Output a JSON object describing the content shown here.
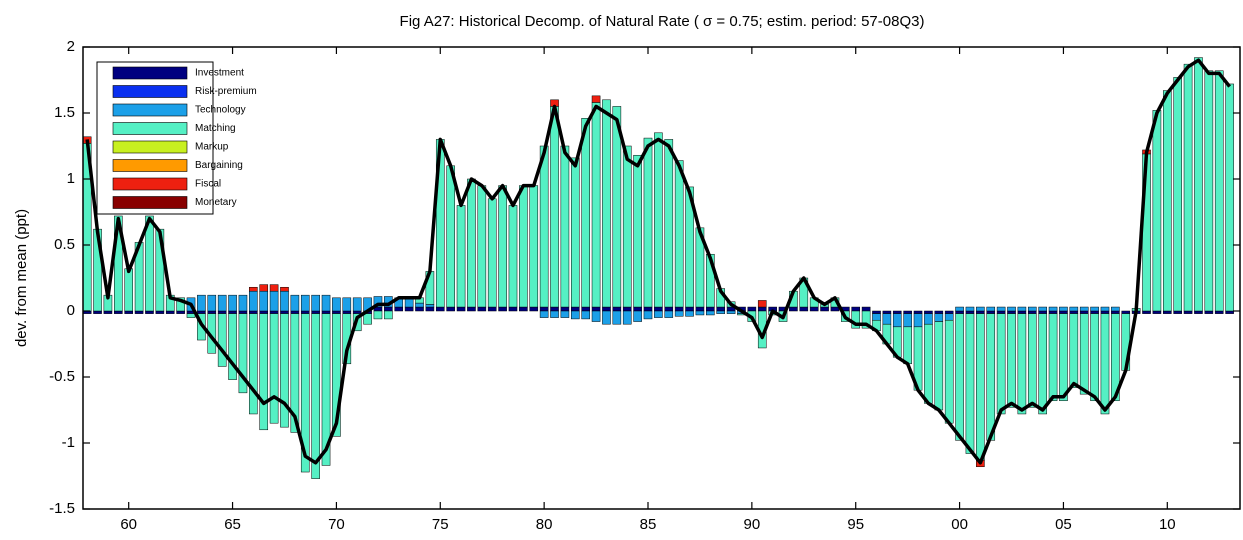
{
  "chart_data": {
    "type": "stacked_bar_line",
    "title": "Fig A27: Historical Decomp. of Natural Rate  (    σ =  0.75; estim. period: 57-08Q3)",
    "ylabel": "dev. from mean (ppt)",
    "x": [
      1958,
      1958.5,
      1959,
      1959.5,
      1960,
      1960.5,
      1961,
      1961.5,
      1962,
      1962.5,
      1963,
      1963.5,
      1964,
      1964.5,
      1965,
      1965.5,
      1966,
      1966.5,
      1967,
      1967.5,
      1968,
      1968.5,
      1969,
      1969.5,
      1970,
      1970.5,
      1971,
      1971.5,
      1972,
      1972.5,
      1973,
      1973.5,
      1974,
      1974.5,
      1975,
      1975.5,
      1976,
      1976.5,
      1977,
      1977.5,
      1978,
      1978.5,
      1979,
      1979.5,
      1980,
      1980.5,
      1981,
      1981.5,
      1982,
      1982.5,
      1983,
      1983.5,
      1984,
      1984.5,
      1985,
      1985.5,
      1986,
      1986.5,
      1987,
      1987.5,
      1988,
      1988.5,
      1989,
      1989.5,
      1990,
      1990.5,
      1991,
      1991.5,
      1992,
      1992.5,
      1993,
      1993.5,
      1994,
      1994.5,
      1995,
      1995.5,
      1996,
      1996.5,
      1997,
      1997.5,
      1998,
      1998.5,
      1999,
      1999.5,
      2000,
      2000.5,
      2001,
      2001.5,
      2002,
      2002.5,
      2003,
      2003.5,
      2004,
      2004.5,
      2005,
      2005.5,
      2006,
      2006.5,
      2007,
      2007.5,
      2008,
      2008.5,
      2009,
      2009.5,
      2010,
      2010.5,
      2011,
      2011.5,
      2012,
      2012.5,
      2013
    ],
    "series": [
      {
        "name": "Investment",
        "color": "#000080",
        "values": [
          -0.02,
          -0.02,
          -0.02,
          -0.02,
          -0.02,
          -0.02,
          -0.02,
          -0.02,
          -0.02,
          -0.02,
          -0.02,
          -0.02,
          -0.02,
          -0.02,
          -0.02,
          -0.02,
          -0.02,
          -0.02,
          -0.02,
          -0.02,
          -0.02,
          -0.02,
          -0.02,
          -0.02,
          -0.02,
          -0.02,
          -0.02,
          -0.02,
          0.03,
          0.03,
          0.03,
          0.03,
          0.03,
          0.03,
          0.03,
          0.03,
          0.03,
          0.03,
          0.03,
          0.03,
          0.03,
          0.03,
          0.03,
          0.03,
          0.03,
          0.03,
          0.03,
          0.03,
          0.03,
          0.03,
          0.03,
          0.03,
          0.03,
          0.03,
          0.03,
          0.03,
          0.03,
          0.03,
          0.03,
          0.03,
          0.03,
          0.03,
          0.03,
          0.03,
          0.03,
          0.03,
          0.03,
          0.03,
          0.03,
          0.03,
          0.03,
          0.03,
          0.03,
          0.03,
          0.03,
          0.03,
          -0.02,
          -0.02,
          -0.02,
          -0.02,
          -0.02,
          -0.02,
          -0.02,
          -0.02,
          -0.02,
          -0.02,
          -0.02,
          -0.02,
          -0.02,
          -0.02,
          -0.02,
          -0.02,
          -0.02,
          -0.02,
          -0.02,
          -0.02,
          -0.02,
          -0.02,
          -0.02,
          -0.02,
          -0.02,
          -0.02,
          -0.02,
          -0.02,
          -0.02,
          -0.02,
          -0.02,
          -0.02,
          -0.02,
          -0.02,
          -0.02
        ]
      },
      {
        "name": "Risk-premium",
        "color": "#0a30f0",
        "values": [
          0,
          0,
          0,
          0,
          0,
          0,
          0,
          0,
          0,
          0,
          0,
          0,
          0,
          0,
          0,
          0,
          0,
          0,
          0,
          0,
          0,
          0,
          0,
          0,
          0,
          0,
          0,
          0,
          0,
          0,
          0,
          0,
          0,
          0,
          0,
          0,
          0,
          0,
          0,
          0,
          0,
          0,
          0,
          0,
          0,
          0,
          0,
          0,
          0,
          0,
          0,
          0,
          0,
          0,
          0,
          0,
          0,
          0,
          0,
          0,
          0,
          0,
          0,
          0,
          0,
          0,
          0,
          0,
          0,
          0,
          0,
          0,
          0,
          0,
          0,
          0,
          0,
          0,
          0,
          0,
          0,
          0,
          0,
          0,
          0,
          0,
          0,
          0,
          0,
          0,
          0,
          0,
          0,
          0,
          0,
          0,
          0,
          0,
          0,
          0,
          0,
          0,
          0,
          0,
          0,
          0,
          0,
          0,
          0,
          0,
          0
        ]
      },
      {
        "name": "Technology",
        "color": "#1ca0e8",
        "values": [
          0,
          0,
          0,
          0,
          0,
          0,
          0,
          0,
          0,
          0,
          0.1,
          0.12,
          0.12,
          0.12,
          0.12,
          0.12,
          0.15,
          0.15,
          0.15,
          0.15,
          0.12,
          0.12,
          0.12,
          0.12,
          0.1,
          0.1,
          0.1,
          0.1,
          0.08,
          0.08,
          0.06,
          0.06,
          0.03,
          0.02,
          0,
          0,
          0,
          0,
          0,
          0,
          0,
          0,
          0,
          0,
          -0.05,
          -0.05,
          -0.05,
          -0.06,
          -0.06,
          -0.08,
          -0.1,
          -0.1,
          -0.1,
          -0.08,
          -0.06,
          -0.05,
          -0.05,
          -0.04,
          -0.04,
          -0.03,
          -0.03,
          -0.02,
          -0.02,
          -0.02,
          0,
          0,
          0,
          0,
          0,
          0,
          0,
          0,
          0,
          0,
          0,
          0,
          -0.05,
          -0.08,
          -0.1,
          -0.1,
          -0.1,
          -0.08,
          -0.06,
          -0.05,
          0.03,
          0.03,
          0.03,
          0.03,
          0.03,
          0.03,
          0.03,
          0.03,
          0.03,
          0.03,
          0.03,
          0.03,
          0.03,
          0.03,
          0.03,
          0.03,
          0,
          0,
          0,
          0,
          0,
          0,
          0,
          0,
          0,
          0,
          0
        ]
      },
      {
        "name": "Matching",
        "color": "#55f0c4",
        "values": [
          1.27,
          0.62,
          0.12,
          0.72,
          0.32,
          0.52,
          0.72,
          0.62,
          0.12,
          0.1,
          -0.03,
          -0.2,
          -0.3,
          -0.4,
          -0.5,
          -0.6,
          -0.76,
          -0.88,
          -0.83,
          -0.86,
          -0.9,
          -1.2,
          -1.25,
          -1.15,
          -0.93,
          -0.38,
          -0.13,
          -0.08,
          -0.06,
          -0.06,
          0.01,
          0.01,
          0.04,
          0.25,
          1.27,
          1.07,
          0.77,
          0.97,
          0.92,
          0.82,
          0.92,
          0.77,
          0.92,
          0.92,
          1.22,
          1.52,
          1.22,
          1.13,
          1.43,
          1.55,
          1.57,
          1.52,
          1.22,
          1.15,
          1.28,
          1.32,
          1.27,
          1.11,
          0.91,
          0.6,
          0.4,
          0.14,
          0.04,
          -0.01,
          -0.08,
          -0.28,
          -0.03,
          -0.08,
          0.12,
          0.22,
          0.07,
          0.02,
          0.07,
          -0.08,
          -0.13,
          -0.13,
          -0.08,
          -0.15,
          -0.23,
          -0.28,
          -0.48,
          -0.6,
          -0.67,
          -0.78,
          -0.96,
          -1.06,
          -1.11,
          -0.96,
          -0.76,
          -0.71,
          -0.76,
          -0.71,
          -0.76,
          -0.66,
          -0.66,
          -0.56,
          -0.61,
          -0.66,
          -0.76,
          -0.66,
          -0.43,
          0.02,
          1.19,
          1.52,
          1.67,
          1.77,
          1.87,
          1.92,
          1.82,
          1.82,
          1.72
        ]
      },
      {
        "name": "Markup",
        "color": "#c8f020",
        "values": [
          0,
          0,
          0,
          0,
          0,
          0,
          0,
          0,
          0,
          0,
          0,
          0,
          0,
          0,
          0,
          0,
          0,
          0,
          0,
          0,
          0,
          0,
          0,
          0,
          0,
          0,
          0,
          0,
          0,
          0,
          0,
          0,
          0,
          0,
          0,
          0,
          0,
          0,
          0,
          0,
          0,
          0,
          0,
          0,
          0,
          0,
          0,
          0,
          0,
          0,
          0,
          0,
          0,
          0,
          0,
          0,
          0,
          0,
          0,
          0,
          0,
          0,
          0,
          0,
          0,
          0,
          0,
          0,
          0,
          0,
          0,
          0,
          0,
          0,
          0,
          0,
          0,
          0,
          0,
          0,
          0,
          0,
          0,
          0,
          0,
          0,
          0,
          0,
          0,
          0,
          0,
          0,
          0,
          0,
          0,
          0,
          0,
          0,
          0,
          0,
          0,
          0,
          0,
          0,
          0,
          0,
          0,
          0,
          0,
          0,
          0
        ]
      },
      {
        "name": "Bargaining",
        "color": "#ff9a00",
        "values": [
          0,
          0,
          0,
          0,
          0,
          0,
          0,
          0,
          0,
          0,
          0,
          0,
          0,
          0,
          0,
          0,
          0,
          0,
          0,
          0,
          0,
          0,
          0,
          0,
          0,
          0,
          0,
          0,
          0,
          0,
          0,
          0,
          0,
          0,
          0,
          0,
          0,
          0,
          0,
          0,
          0,
          0,
          0,
          0,
          0,
          0,
          0,
          0,
          0,
          0,
          0,
          0,
          0,
          0,
          0,
          0,
          0,
          0,
          0,
          0,
          0,
          0,
          0,
          0,
          0,
          0,
          0,
          0,
          0,
          0,
          0,
          0,
          0,
          0,
          0,
          0,
          0,
          0,
          0,
          0,
          0,
          0,
          0,
          0,
          0,
          0,
          0,
          0,
          0,
          0,
          0,
          0,
          0,
          0,
          0,
          0,
          0,
          0,
          0,
          0,
          0,
          0,
          0,
          0,
          0,
          0,
          0,
          0,
          0,
          0,
          0
        ]
      },
      {
        "name": "Fiscal",
        "color": "#ee2010",
        "values": [
          0.05,
          0,
          0,
          0,
          0,
          0,
          0,
          0,
          0,
          0,
          0,
          0,
          0,
          0,
          0,
          0,
          0.03,
          0.05,
          0.05,
          0.03,
          0,
          0,
          0,
          0,
          0,
          0,
          0,
          0,
          0,
          0,
          0,
          0,
          0,
          0,
          0,
          0,
          0,
          0,
          0,
          0,
          0,
          0,
          0,
          0,
          0,
          0.05,
          0,
          0,
          0,
          0.05,
          0,
          0,
          0,
          0,
          0,
          0,
          0,
          0,
          0,
          0,
          0,
          0,
          0,
          0,
          0,
          0.05,
          0,
          0,
          0,
          0,
          0,
          0,
          0,
          0,
          0,
          0,
          0,
          0,
          0,
          0,
          0,
          0,
          0,
          0,
          0,
          0,
          -0.05,
          0,
          0,
          0,
          0,
          0,
          0,
          0,
          0,
          0,
          0,
          0,
          0,
          0,
          0,
          0,
          0.03,
          0,
          0,
          0,
          0,
          0,
          0,
          0,
          0
        ]
      },
      {
        "name": "Monetary",
        "color": "#880000",
        "values": [
          0,
          0,
          0,
          0,
          0,
          0,
          0,
          0,
          0,
          0,
          0,
          0,
          0,
          0,
          0,
          0,
          0,
          0,
          0,
          0,
          0,
          0,
          0,
          0,
          0,
          0,
          0,
          0,
          0,
          0,
          0,
          0,
          0,
          0,
          0,
          0,
          0,
          0,
          0,
          0,
          0,
          0,
          0,
          0,
          0,
          0,
          0,
          0,
          0,
          0,
          0,
          0,
          0,
          0,
          0,
          0,
          0,
          0,
          0,
          0,
          0,
          0,
          0,
          0,
          0,
          0,
          0,
          0,
          0,
          0,
          0,
          0,
          0,
          0,
          0,
          0,
          0,
          0,
          0,
          0,
          0,
          0,
          0,
          0,
          0,
          0,
          0,
          0,
          0,
          0,
          0,
          0,
          0,
          0,
          0,
          0,
          0,
          0,
          0,
          0,
          0,
          0,
          0,
          0,
          0,
          0,
          0,
          0,
          0,
          0,
          0
        ]
      }
    ],
    "line": {
      "color": "#000000",
      "values": [
        1.3,
        0.6,
        0.1,
        0.7,
        0.3,
        0.5,
        0.7,
        0.6,
        0.1,
        0.08,
        0.05,
        -0.1,
        -0.2,
        -0.3,
        -0.4,
        -0.5,
        -0.6,
        -0.7,
        -0.65,
        -0.7,
        -0.8,
        -1.1,
        -1.15,
        -1.05,
        -0.85,
        -0.3,
        -0.05,
        0,
        0.05,
        0.05,
        0.1,
        0.1,
        0.1,
        0.3,
        1.3,
        1.1,
        0.8,
        1,
        0.95,
        0.85,
        0.95,
        0.8,
        0.95,
        0.95,
        1.2,
        1.55,
        1.2,
        1.1,
        1.4,
        1.55,
        1.5,
        1.45,
        1.15,
        1.1,
        1.25,
        1.3,
        1.25,
        1.1,
        0.9,
        0.6,
        0.4,
        0.15,
        0.05,
        0,
        -0.05,
        -0.2,
        0,
        -0.05,
        0.15,
        0.25,
        0.1,
        0.05,
        0.1,
        -0.05,
        -0.1,
        -0.1,
        -0.15,
        -0.25,
        -0.35,
        -0.4,
        -0.6,
        -0.7,
        -0.75,
        -0.85,
        -0.95,
        -1.05,
        -1.15,
        -0.95,
        -0.75,
        -0.7,
        -0.75,
        -0.7,
        -0.75,
        -0.65,
        -0.65,
        -0.55,
        -0.6,
        -0.65,
        -0.75,
        -0.65,
        -0.45,
        0,
        1.2,
        1.5,
        1.65,
        1.75,
        1.85,
        1.9,
        1.8,
        1.8,
        1.7
      ]
    },
    "xlim": [
      1957.8,
      2013.5
    ],
    "xticks": [
      {
        "value": 1960,
        "label": "60"
      },
      {
        "value": 1965,
        "label": "65"
      },
      {
        "value": 1970,
        "label": "70"
      },
      {
        "value": 1975,
        "label": "75"
      },
      {
        "value": 1980,
        "label": "80"
      },
      {
        "value": 1985,
        "label": "85"
      },
      {
        "value": 1990,
        "label": "90"
      },
      {
        "value": 1995,
        "label": "95"
      },
      {
        "value": 2000,
        "label": "00"
      },
      {
        "value": 2005,
        "label": "05"
      },
      {
        "value": 2010,
        "label": "10"
      }
    ],
    "ylim": [
      -1.5,
      2
    ],
    "yticks": [
      -1.5,
      -1,
      -0.5,
      0,
      0.5,
      1,
      1.5,
      2
    ],
    "legend": "upper left"
  }
}
